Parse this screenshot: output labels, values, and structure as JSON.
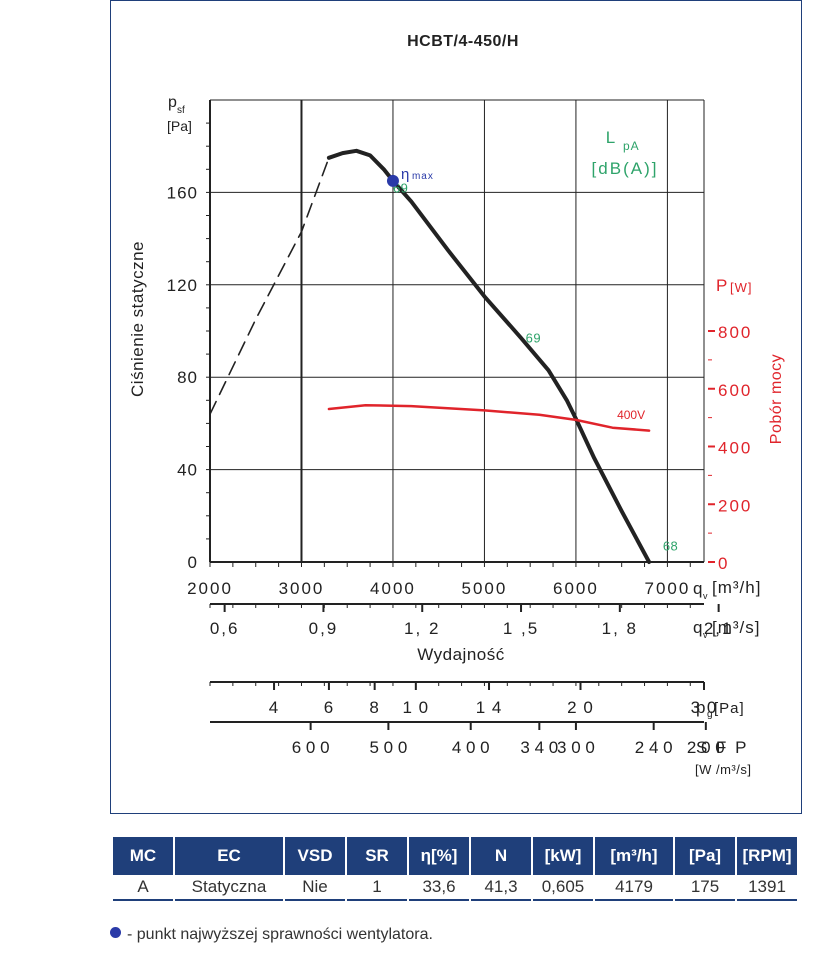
{
  "chart_data": {
    "type": "line",
    "title": "HCBT/4-450/H",
    "ylabel": "Ciśnienie statyczne",
    "ylabel_symbol": "p",
    "ylabel_sub": "sf",
    "yunit": "[Pa]",
    "xlabel": "Wydajność",
    "ylim": [
      0,
      200
    ],
    "yticks": [
      0,
      40,
      80,
      120,
      160
    ],
    "xlim": [
      2000,
      7400
    ],
    "xticks": [
      2000,
      3000,
      4000,
      5000,
      6000,
      7000
    ],
    "x_unit_symbol": "q",
    "x_unit_sub": "v",
    "x_unit": "[m³/h]",
    "x2_ticks": [
      "0,6",
      "0,9",
      "1, 2",
      "1 ,5",
      "1, 8",
      "2,1"
    ],
    "x2_tick_positions": [
      2160,
      3240,
      4320,
      5400,
      6480,
      7560
    ],
    "x2_unit": "[m³/s]",
    "y2_label": "Pobór mocy",
    "y2_symbol": "P",
    "y2_unit": "[W]",
    "y2lim": [
      0,
      1600
    ],
    "y2ticks": [
      0,
      200,
      400,
      600,
      800
    ],
    "lpa_label": "L",
    "lpa_sub": "pA",
    "lpa_unit": "[dB(A)]",
    "series": [
      {
        "name": "",
        "role": "pressure-unstable",
        "color": "#222222",
        "dash": true,
        "x": [
          2000,
          2500,
          3000,
          3300
        ],
        "y": [
          64,
          105,
          143,
          175
        ]
      },
      {
        "name": "",
        "role": "pressure",
        "color": "#222222",
        "x": [
          3300,
          3450,
          3600,
          3750,
          3900,
          4000,
          4200,
          4600,
          5000,
          5400,
          5700,
          5900,
          6000,
          6200,
          6500,
          6800
        ],
        "y": [
          175,
          177,
          178,
          176,
          170,
          165,
          156,
          135,
          115,
          97,
          83,
          70,
          62,
          45,
          22,
          0
        ]
      },
      {
        "name": "400V",
        "role": "power",
        "color": "#e0242b",
        "x": [
          3300,
          3700,
          4200,
          5000,
          5600,
          6000,
          6400,
          6800
        ],
        "y": [
          530,
          543,
          540,
          525,
          510,
          492,
          465,
          455
        ]
      }
    ],
    "eta_max": {
      "label": "η",
      "label_sub": "max",
      "x": 4000,
      "y": 165
    },
    "lpa_annotations": [
      {
        "text": "69",
        "x": 4000,
        "y": 160
      },
      {
        "text": "69",
        "x": 5450,
        "y": 95
      },
      {
        "text": "68",
        "x": 6950,
        "y": 5
      }
    ],
    "power_label_pos": {
      "x": 6450,
      "y": 496
    },
    "pg_scale": {
      "label": "p",
      "label_sub": "g",
      "unit": "[Pa]",
      "ticks": [
        "4",
        "6",
        "8",
        "1 0",
        "1 4",
        "2 0",
        "3 0"
      ],
      "tick_x": [
        2700,
        3300,
        3800,
        4250,
        5050,
        6050,
        7400
      ]
    },
    "sfp_scale": {
      "label": "S F P",
      "unit": "[W /m³/s]",
      "ticks": [
        "6 0 0",
        "5 0 0",
        "4 0 0",
        "3 4 0",
        "3 0 0",
        "2 4 0",
        "2 0 0"
      ],
      "tick_x": [
        3100,
        3950,
        4850,
        5600,
        6000,
        6850,
        7420
      ]
    },
    "grid": true
  },
  "table": {
    "headers": [
      "MC",
      "EC",
      "VSD",
      "SR",
      "η[%]",
      "N",
      "[kW]",
      "[m³/h]",
      "[Pa]",
      "[RPM]"
    ],
    "row": [
      "A",
      "Statyczna",
      "Nie",
      "1",
      "33,6",
      "41,3",
      "0,605",
      "4179",
      "175",
      "1391"
    ]
  },
  "legend_note": "- punkt najwyższej sprawności wentylatora.",
  "colors": {
    "frame": "#1f3f7a",
    "pressure": "#222222",
    "power": "#e0242b",
    "lpa": "#2ea36a",
    "eta": "#2a3aa8"
  }
}
